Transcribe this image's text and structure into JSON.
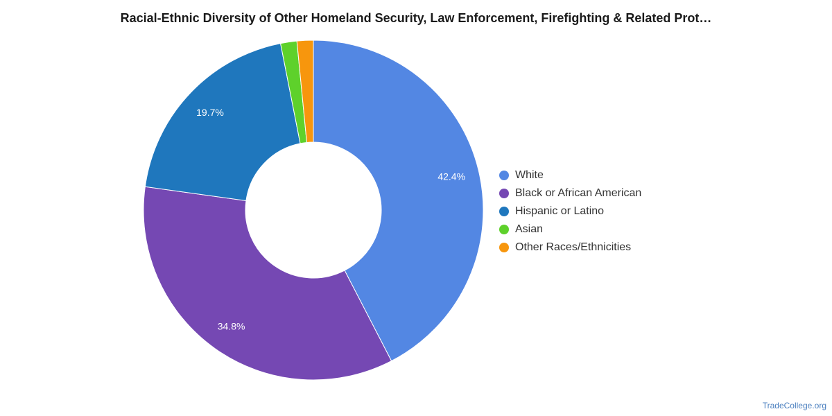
{
  "chart_data": {
    "type": "pie",
    "title": "Racial-Ethnic Diversity of Other Homeland Security, Law Enforcement, Firefighting & Related Prot…",
    "donut": true,
    "legend_position": "right",
    "categories": [
      "White",
      "Black or African American",
      "Hispanic or Latino",
      "Asian",
      "Other Races/Ethnicities"
    ],
    "values": [
      42.4,
      34.8,
      19.7,
      1.55,
      1.55
    ],
    "data_labels": [
      "42.4%",
      "34.8%",
      "19.7%",
      "",
      ""
    ],
    "colors": [
      "#5387e3",
      "#7548b3",
      "#1f77bd",
      "#5ed12b",
      "#f7960d"
    ]
  },
  "watermark": "TradeCollege.org"
}
